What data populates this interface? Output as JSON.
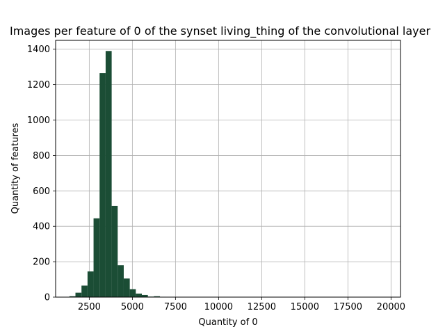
{
  "chart_data": {
    "type": "bar",
    "title": "Images per feature of 0 of the synset living_thing of the convolutional layer",
    "xlabel": "Quantity of 0",
    "ylabel": "Quantity of features",
    "xlim": [
      550,
      20550
    ],
    "ylim": [
      0,
      1450
    ],
    "xticks": [
      2500,
      5000,
      7500,
      10000,
      12500,
      15000,
      17500,
      20000
    ],
    "yticks": [
      0,
      200,
      400,
      600,
      800,
      1000,
      1200,
      1400
    ],
    "grid": true,
    "bar_color": "#1b4d35",
    "bins": [
      {
        "x0": 1350,
        "x1": 1700,
        "count": 5
      },
      {
        "x0": 1700,
        "x1": 2050,
        "count": 25
      },
      {
        "x0": 2050,
        "x1": 2400,
        "count": 65
      },
      {
        "x0": 2400,
        "x1": 2750,
        "count": 145
      },
      {
        "x0": 2750,
        "x1": 3100,
        "count": 445
      },
      {
        "x0": 3100,
        "x1": 3450,
        "count": 1265
      },
      {
        "x0": 3450,
        "x1": 3800,
        "count": 1390
      },
      {
        "x0": 3800,
        "x1": 4150,
        "count": 515
      },
      {
        "x0": 4150,
        "x1": 4500,
        "count": 180
      },
      {
        "x0": 4500,
        "x1": 4850,
        "count": 105
      },
      {
        "x0": 4850,
        "x1": 5200,
        "count": 45
      },
      {
        "x0": 5200,
        "x1": 5550,
        "count": 20
      },
      {
        "x0": 5550,
        "x1": 5900,
        "count": 12
      },
      {
        "x0": 5900,
        "x1": 6250,
        "count": 3
      },
      {
        "x0": 6250,
        "x1": 6600,
        "count": 5
      },
      {
        "x0": 6600,
        "x1": 6950,
        "count": 2
      },
      {
        "x0": 6950,
        "x1": 7300,
        "count": 1
      },
      {
        "x0": 19300,
        "x1": 19650,
        "count": 1
      }
    ]
  }
}
